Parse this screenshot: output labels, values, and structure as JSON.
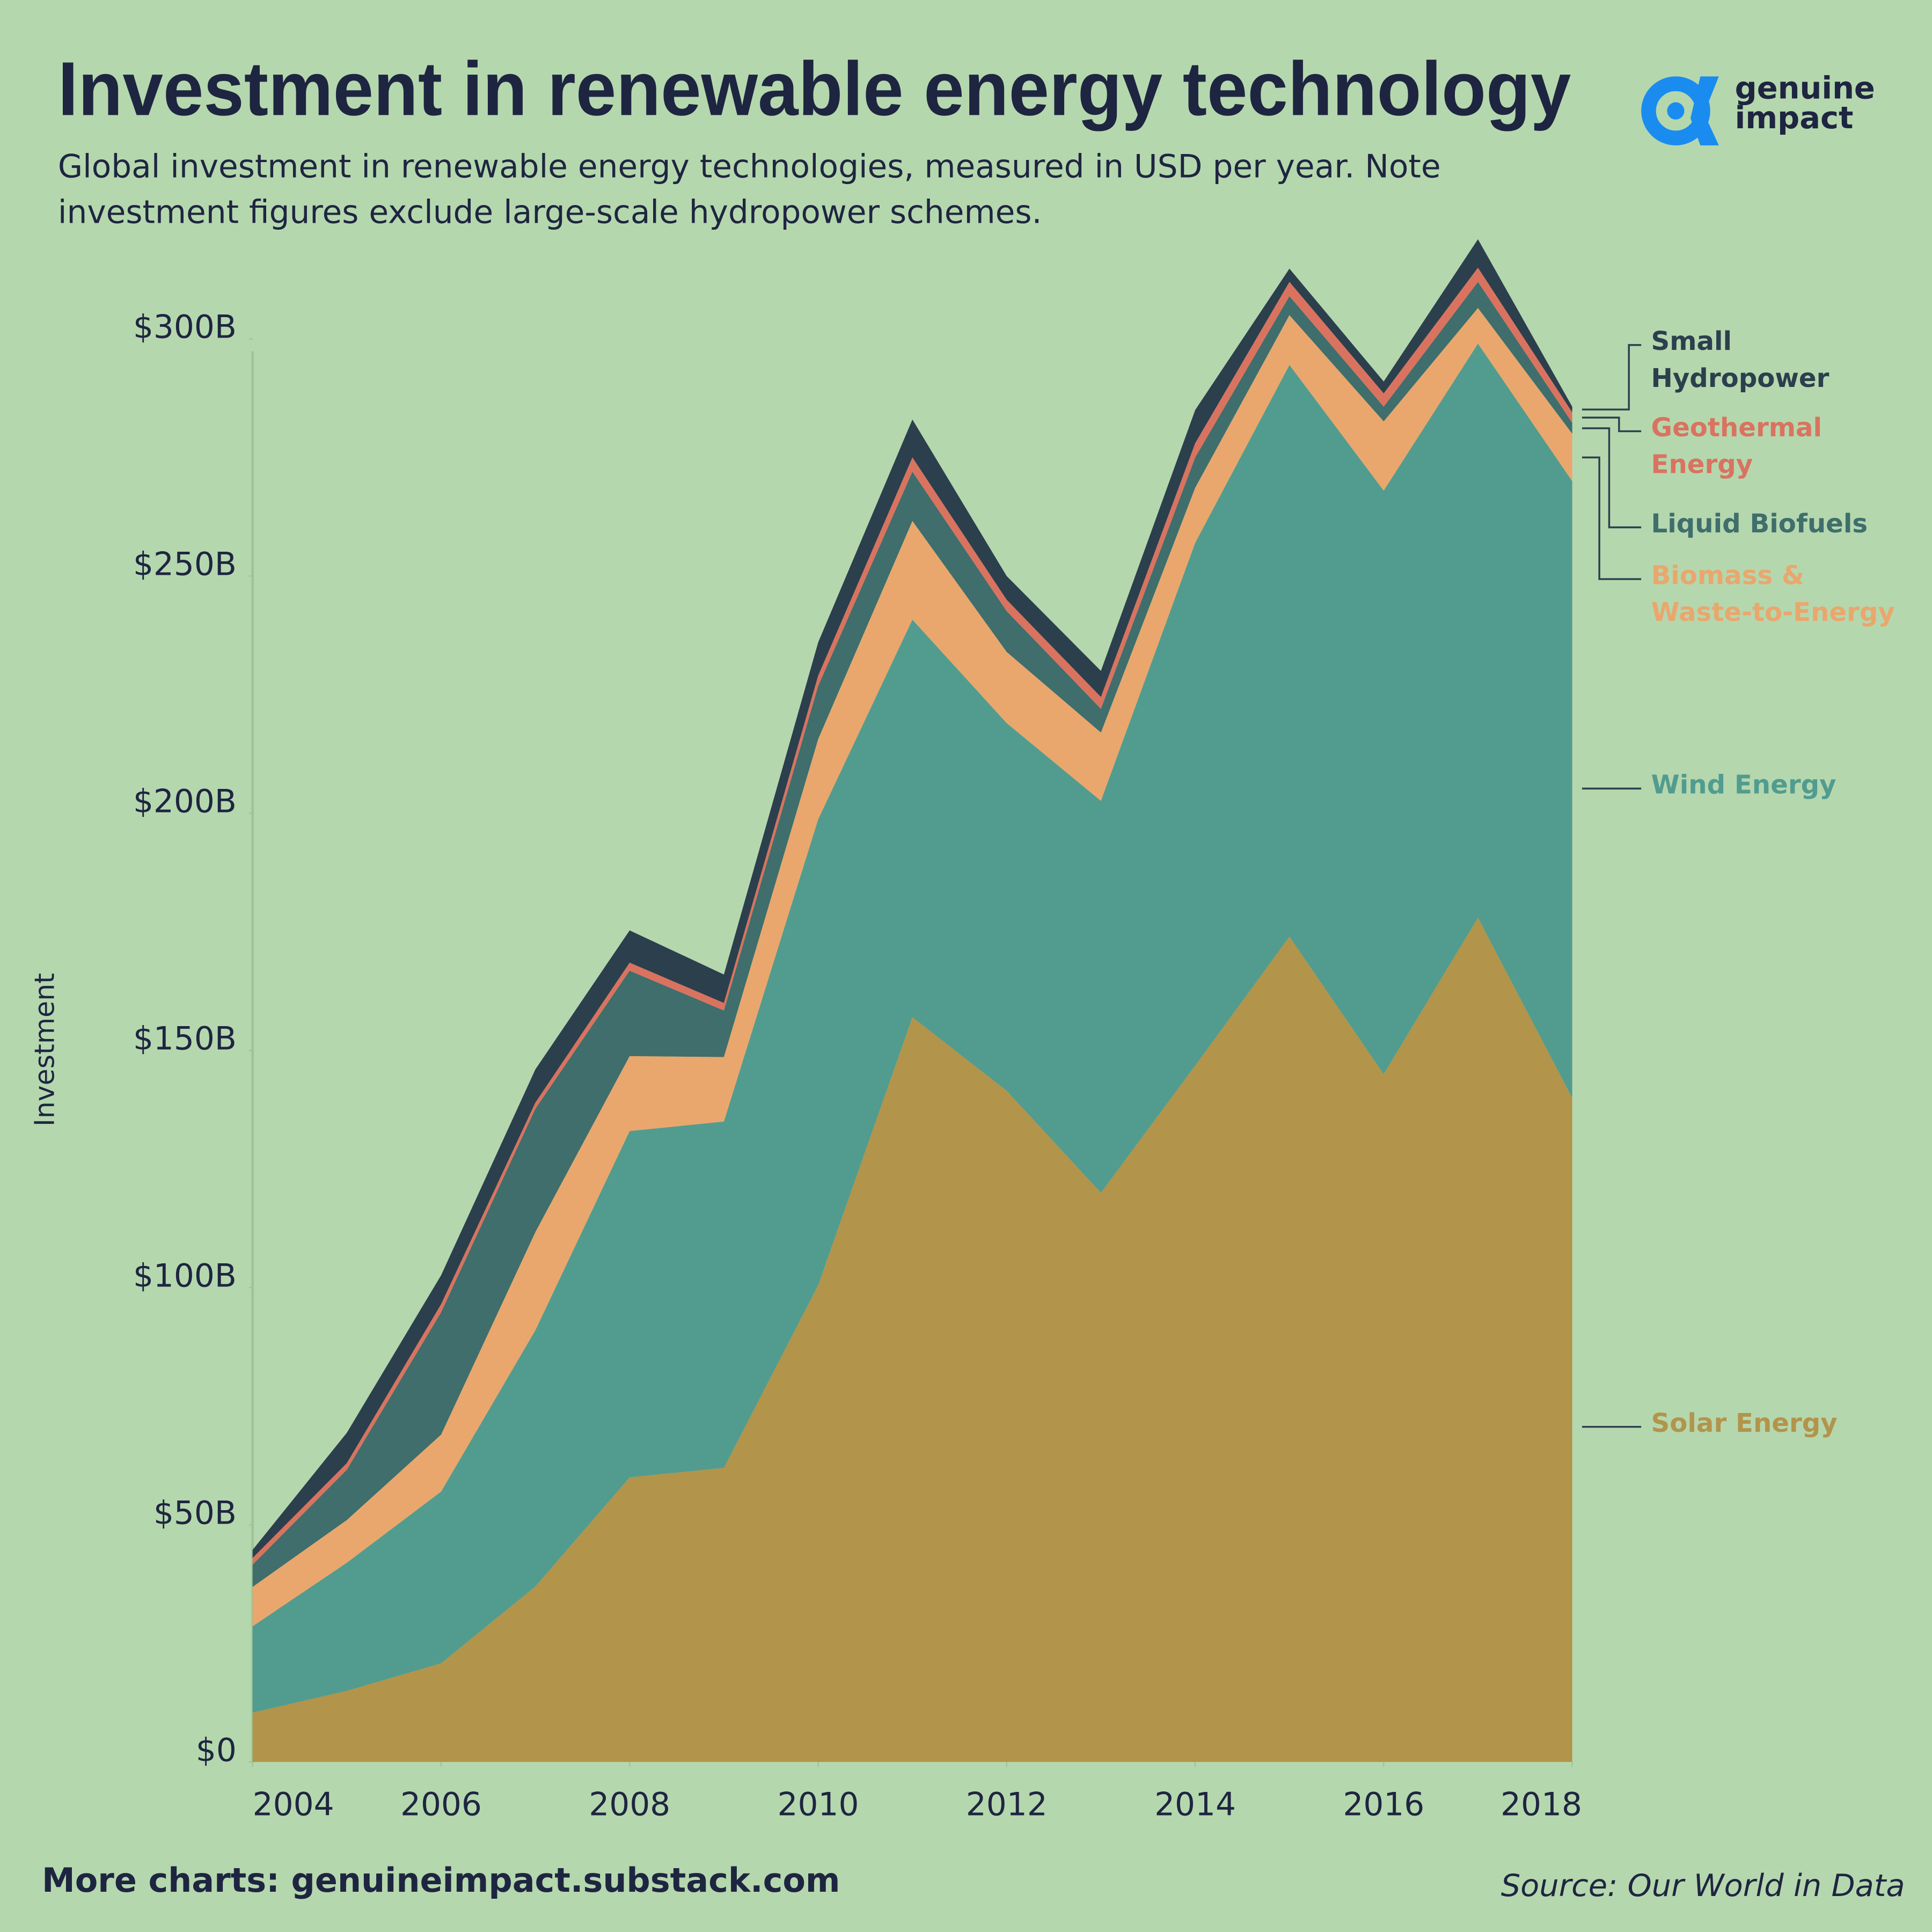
{
  "chart_data": {
    "type": "stacked_area",
    "title": "Investment in renewable energy technology",
    "subtitle": "Global investment in renewable energy technologies, measured in USD per year. Note investment figures exclude large-scale hydropower schemes.",
    "y_label": "Investment",
    "logo": "genuine impact",
    "footer": "More charts: genuineimpact.substack.com",
    "source": "Source: Our World in Data",
    "x": [
      2004,
      2005,
      2006,
      2007,
      2008,
      2009,
      2010,
      2011,
      2012,
      2013,
      2014,
      2015,
      2016,
      2017,
      2018
    ],
    "xlim": [
      2004,
      2018
    ],
    "xticks": [
      2004,
      2006,
      2008,
      2010,
      2012,
      2014,
      2016,
      2018
    ],
    "ylim": [
      0,
      300
    ],
    "yticks": [
      {
        "value": 0,
        "label": "$0"
      },
      {
        "value": 50,
        "label": "$50B"
      },
      {
        "value": 100,
        "label": "$100B"
      },
      {
        "value": 150,
        "label": "$150B"
      },
      {
        "value": 200,
        "label": "$200B"
      },
      {
        "value": 250,
        "label": "$250B"
      },
      {
        "value": 300,
        "label": "$300B"
      }
    ],
    "series": [
      {
        "name": "Solar Energy",
        "color": "#b2944b",
        "values": [
          10.4,
          15,
          20.8,
          37,
          60,
          62,
          100.5,
          157,
          141.5,
          120,
          146.8,
          174,
          145,
          178,
          140
        ]
      },
      {
        "name": "Wind Energy",
        "color": "#519c8f",
        "values": [
          18.2,
          27,
          36.2,
          54,
          73,
          73,
          98.2,
          83.8,
          77.5,
          82.6,
          110.2,
          120.5,
          123,
          121,
          130
        ]
      },
      {
        "name": "Biomass & Waste-to-Energy",
        "color": "#e9a76d",
        "values": [
          8.3,
          9,
          12,
          20.7,
          15.8,
          13.6,
          16.9,
          20.8,
          15,
          14.4,
          11.6,
          10.5,
          14.6,
          7.5,
          10
        ]
      },
      {
        "name": "Liquid Biofuels",
        "color": "#3f6e6c",
        "values": [
          4.7,
          10.6,
          25.8,
          26,
          18,
          9.8,
          11.2,
          10.4,
          8.6,
          5,
          6.4,
          4,
          3.1,
          5.5,
          2.3
        ]
      },
      {
        "name": "Geothermal Energy",
        "color": "#d9735f",
        "values": [
          1.4,
          1.4,
          1.7,
          1.3,
          1.7,
          1.6,
          2.2,
          3,
          2.4,
          2.5,
          3,
          3,
          2.8,
          3,
          2.2
        ]
      },
      {
        "name": "Small Hydropower",
        "color": "#2c3f4d",
        "values": [
          1.7,
          6.4,
          6.1,
          7,
          6.8,
          6,
          7,
          8,
          5,
          5.5,
          7,
          2.8,
          2.5,
          6,
          1.2
        ]
      }
    ]
  }
}
